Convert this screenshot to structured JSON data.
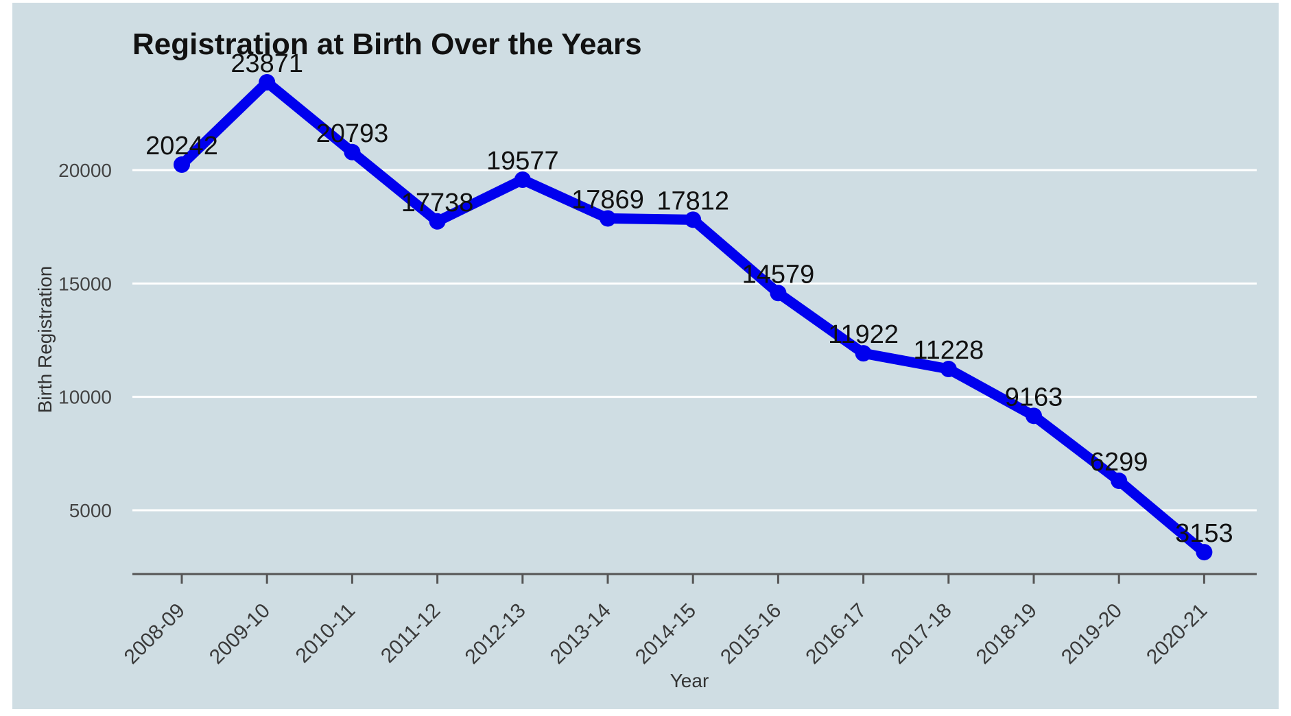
{
  "chart_data": {
    "type": "line",
    "title": "Registration at Birth Over the Years",
    "xlabel": "Year",
    "ylabel": "Birth Registration",
    "categories": [
      "2008-09",
      "2009-10",
      "2010-11",
      "2011-12",
      "2012-13",
      "2013-14",
      "2014-15",
      "2015-16",
      "2016-17",
      "2017-18",
      "2018-19",
      "2019-20",
      "2020-21"
    ],
    "series": [
      {
        "values": [
          20242,
          23871,
          20793,
          17738,
          19577,
          17869,
          17812,
          14579,
          11922,
          11228,
          9163,
          6299,
          3153
        ]
      }
    ],
    "yticks": [
      5000,
      10000,
      15000,
      20000
    ],
    "ylim": [
      2900,
      24500
    ],
    "grid": true,
    "line_color": "#0000ee",
    "background_color": "#cfdde3",
    "gridline_color": "#ffffff"
  }
}
